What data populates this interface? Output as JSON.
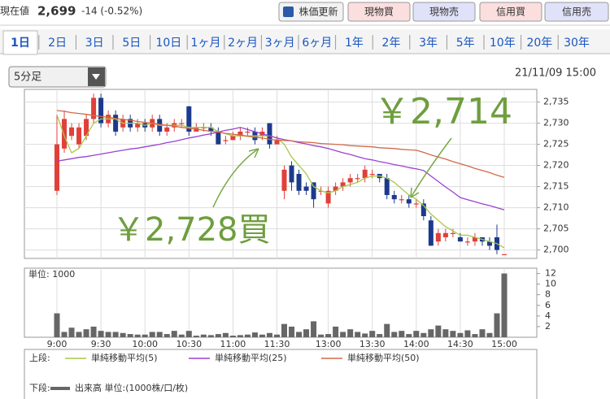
{
  "header": {
    "label": "現在値",
    "price": "2,699",
    "change": "-14 (-0.52%)",
    "buttons": [
      "株価更新",
      "現物買",
      "現物売",
      "信用買",
      "信用売"
    ]
  },
  "tabs": [
    "1日",
    "2日",
    "3日",
    "5日",
    "10日",
    "1ヶ月",
    "2ヶ月",
    "3ヶ月",
    "6ヶ月",
    "1年",
    "2年",
    "3年",
    "5年",
    "10年",
    "20年",
    "30年"
  ],
  "interval": "5分足",
  "timestamp": "21/11/09 15:00",
  "legend": {
    "upper": "上段:",
    "lower": "下段:"
  },
  "chart_data": [
    {
      "type": "candlestick",
      "open": [
        2714,
        2724,
        2727,
        2725,
        2727,
        2731,
        2736,
        2730,
        2732,
        2729,
        2731,
        2729,
        2730,
        2729,
        2731,
        2728,
        2729,
        2730,
        2734,
        2728,
        2729,
        2729,
        2728,
        2726,
        2726,
        2727,
        2728,
        2728,
        2727,
        2730,
        2725,
        2714,
        2720,
        2718,
        2715,
        2716,
        2714,
        2711,
        2714,
        2715,
        2716,
        2717,
        2717,
        2718,
        2718,
        2717,
        2713,
        2712,
        2712,
        2711,
        2711,
        2707,
        2702,
        2703,
        2704,
        2703,
        2702,
        2702,
        2703,
        2702,
        2703,
        2699
      ],
      "high": [
        2732,
        2733,
        2730,
        2730,
        2732,
        2737,
        2737,
        2733,
        2733,
        2732,
        2732,
        2731,
        2731,
        2732,
        2732,
        2730,
        2731,
        2731,
        2734,
        2730,
        2730,
        2730,
        2729,
        2727,
        2728,
        2729,
        2729,
        2729,
        2729,
        2730,
        2727,
        2720,
        2721,
        2719,
        2716,
        2716,
        2715,
        2715,
        2716,
        2717,
        2718,
        2718,
        2720,
        2719,
        2718,
        2718,
        2714,
        2713,
        2713,
        2712,
        2712,
        2708,
        2705,
        2705,
        2705,
        2704,
        2703,
        2704,
        2703,
        2703,
        2706,
        2699
      ],
      "low": [
        2713,
        2723,
        2726,
        2724,
        2726,
        2730,
        2729,
        2729,
        2727,
        2728,
        2728,
        2728,
        2728,
        2728,
        2727,
        2727,
        2728,
        2729,
        2727,
        2728,
        2728,
        2727,
        2725,
        2725,
        2726,
        2726,
        2727,
        2725,
        2726,
        2724,
        2725,
        2712,
        2714,
        2713,
        2713,
        2710,
        2713,
        2710,
        2713,
        2714,
        2715,
        2716,
        2716,
        2717,
        2716,
        2712,
        2711,
        2711,
        2710,
        2710,
        2707,
        2701,
        2701,
        2702,
        2703,
        2702,
        2701,
        2701,
        2701,
        2700,
        2699,
        2699
      ],
      "close": [
        2725,
        2731,
        2729,
        2729,
        2731,
        2736,
        2730,
        2732,
        2728,
        2731,
        2729,
        2730,
        2729,
        2731,
        2728,
        2729,
        2730,
        2730,
        2728,
        2729,
        2729,
        2728,
        2725,
        2726,
        2727,
        2728,
        2728,
        2726,
        2728,
        2725,
        2726,
        2719,
        2716,
        2714,
        2714,
        2712,
        2714,
        2714,
        2715,
        2716,
        2717,
        2717,
        2719,
        2718,
        2717,
        2713,
        2712,
        2712,
        2711,
        2711,
        2708,
        2701,
        2704,
        2704,
        2704,
        2702,
        2702,
        2703,
        2702,
        2701,
        2700,
        2699
      ],
      "up_color": "#e0403a",
      "down_color": "#1c3a8c",
      "series": [
        {
          "name": "単純移動平均(5)",
          "color": "#a8c84a",
          "values": [
            2732,
            2727,
            2723,
            2724,
            2727,
            2730,
            2731,
            2731,
            2731,
            2730,
            2730,
            2730,
            2729.5,
            2730,
            2729.5,
            2729.5,
            2729.5,
            2729.5,
            2729,
            2729,
            2729,
            2729,
            2728,
            2727.5,
            2727,
            2727,
            2727,
            2727,
            2727,
            2727,
            2726.5,
            2725,
            2722,
            2720,
            2718,
            2715,
            2714,
            2713.5,
            2714,
            2715,
            2715.5,
            2716,
            2717,
            2717.5,
            2717.5,
            2717,
            2716,
            2714.5,
            2713,
            2712,
            2710.5,
            2708.5,
            2707,
            2705.5,
            2704.5,
            2703.5,
            2703.5,
            2703,
            2702.5,
            2702,
            2701.5,
            2700.5
          ]
        },
        {
          "name": "単純移動平均(25)",
          "color": "#9b42d0",
          "values": [
            2721,
            2721.3,
            2721.6,
            2721.9,
            2722.1,
            2722.4,
            2722.7,
            2723,
            2723.3,
            2723.6,
            2723.9,
            2724.1,
            2724.4,
            2724.7,
            2725,
            2725.4,
            2725.7,
            2726.1,
            2726.5,
            2726.8,
            2727.2,
            2727.5,
            2727.9,
            2728.3,
            2728.6,
            2729,
            2728.5,
            2728,
            2727.5,
            2727,
            2726.5,
            2726.1,
            2725.8,
            2725.4,
            2725.1,
            2724.7,
            2724.4,
            2724,
            2723.5,
            2723,
            2722.6,
            2722.1,
            2721.6,
            2721.3,
            2720.9,
            2720.6,
            2720.2,
            2719.9,
            2719.5,
            2719.2,
            2718.8,
            2717.5,
            2716.2,
            2714.9,
            2713.7,
            2712.4,
            2711.9,
            2711.4,
            2710.9,
            2710.5,
            2710,
            2709.5
          ]
        },
        {
          "name": "単純移動平均(50)",
          "color": "#d2694a",
          "values": [
            2733,
            2732.8,
            2732.5,
            2732.3,
            2732.1,
            2731.8,
            2731.6,
            2731.4,
            2731.1,
            2730.9,
            2730.7,
            2730.4,
            2730.2,
            2730,
            2729.7,
            2729.5,
            2729.3,
            2729,
            2728.8,
            2728.6,
            2728.3,
            2728.1,
            2727.9,
            2727.6,
            2727.4,
            2727.2,
            2726.9,
            2726.7,
            2726.5,
            2726.2,
            2726,
            2725.9,
            2725.8,
            2725.6,
            2725.5,
            2725.4,
            2725.2,
            2725.1,
            2725,
            2724.9,
            2724.7,
            2724.6,
            2724.5,
            2724.4,
            2724.2,
            2724.1,
            2724,
            2723.8,
            2723.7,
            2723.6,
            2723.1,
            2722.5,
            2722,
            2721.5,
            2720.9,
            2720.4,
            2719.9,
            2719.3,
            2718.8,
            2718.3,
            2717.7,
            2717.2
          ]
        }
      ],
      "ylim": [
        2698,
        2738
      ],
      "yticks": [
        {
          "value": 2700,
          "label": "2,700"
        },
        {
          "value": 2705,
          "label": "2,705"
        },
        {
          "value": 2710,
          "label": "2,710"
        },
        {
          "value": 2715,
          "label": "2,715"
        },
        {
          "value": 2720,
          "label": "2,720"
        },
        {
          "value": 2725,
          "label": "2,725"
        },
        {
          "value": 2730,
          "label": "2,730"
        },
        {
          "value": 2735,
          "label": "2,735"
        }
      ],
      "grid": true,
      "annotations": [
        "￥2,728買",
        "￥2,714"
      ]
    },
    {
      "type": "bar",
      "unit_label": "単位: 1000",
      "categories": [
        "9:00",
        null,
        null,
        null,
        null,
        null,
        "9:30",
        null,
        null,
        null,
        null,
        null,
        "10:00",
        null,
        null,
        null,
        null,
        null,
        "10:30",
        null,
        null,
        null,
        null,
        null,
        "11:00",
        null,
        null,
        null,
        null,
        null,
        "11:30",
        null,
        null,
        null,
        null,
        null,
        null,
        "13:00",
        null,
        null,
        null,
        null,
        null,
        "13:30",
        null,
        null,
        null,
        null,
        null,
        "14:00",
        null,
        null,
        null,
        null,
        null,
        "14:30",
        null,
        null,
        null,
        null,
        null,
        "15:00"
      ],
      "series": [
        {
          "name": "出来高 単位:(1000株/口/枚)",
          "color": "#666666",
          "values": [
            4.5,
            1,
            1.8,
            1,
            1.5,
            2,
            1.2,
            1,
            1,
            0.8,
            0.6,
            0.5,
            0.5,
            1,
            1,
            0.6,
            1.2,
            0.5,
            1.2,
            0.3,
            0.5,
            0.4,
            0.6,
            0.8,
            0.3,
            0.4,
            0.5,
            0.9,
            0.5,
            0.8,
            0.5,
            2.5,
            2,
            1,
            1.5,
            3,
            0.5,
            0.6,
            2,
            1,
            1.5,
            1,
            0.7,
            1.2,
            0.6,
            2.5,
            1,
            1.2,
            0.6,
            1.2,
            0.8,
            1.5,
            2.2,
            1.5,
            1.2,
            0.8,
            1.3,
            0.6,
            1.5,
            0.8,
            4.5,
            12
          ]
        }
      ],
      "ylim": [
        0,
        13
      ],
      "yticks": [
        2,
        4,
        6,
        8,
        10,
        12
      ],
      "grid": true
    }
  ]
}
